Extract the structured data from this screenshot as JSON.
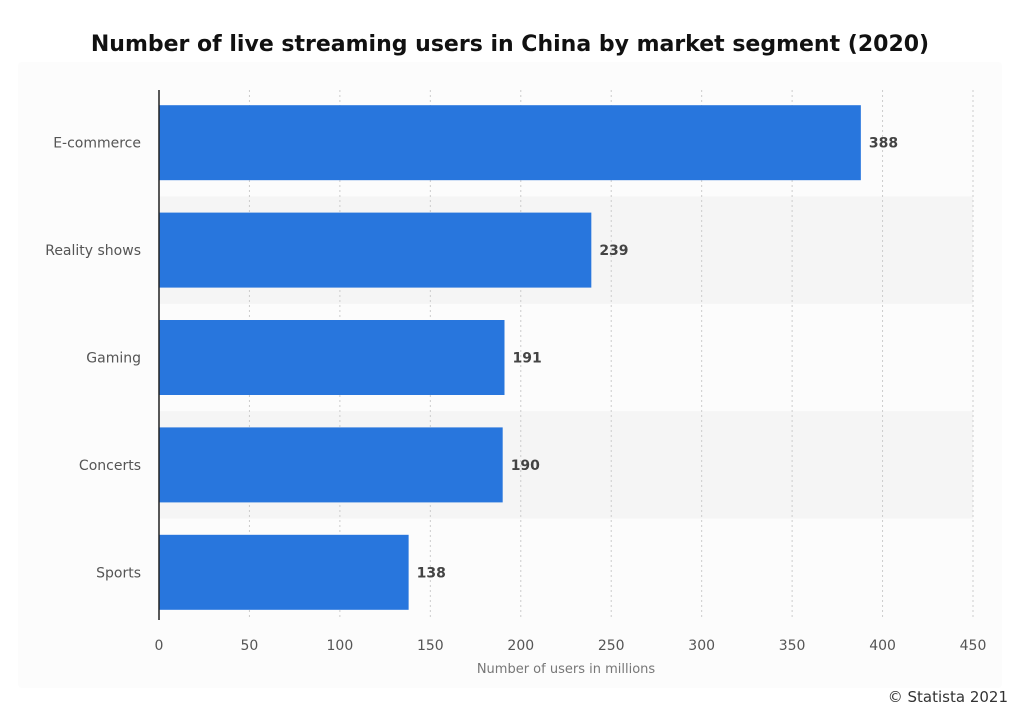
{
  "header": {
    "title": "Number of live streaming users in China by market segment (2020)"
  },
  "footer": {
    "credit": "© Statista 2021"
  },
  "colors": {
    "bar": "#2876dd",
    "band": "#f5f5f5",
    "grid": "#cccccc",
    "axis": "#222222"
  },
  "chart_data": {
    "type": "bar",
    "orientation": "horizontal",
    "title": "Number of live streaming users in China by market segment (2020)",
    "xlabel": "Number of users in millions",
    "ylabel": "",
    "categories": [
      "E-commerce",
      "Reality shows",
      "Gaming",
      "Concerts",
      "Sports"
    ],
    "values": [
      388,
      239,
      191,
      190,
      138
    ],
    "value_labels": [
      "388",
      "239",
      "191",
      "190",
      "138"
    ],
    "xlim": [
      0,
      450
    ],
    "xticks": [
      0,
      50,
      100,
      150,
      200,
      250,
      300,
      350,
      400,
      450
    ],
    "xtick_labels": [
      "0",
      "50",
      "100",
      "150",
      "200",
      "250",
      "300",
      "350",
      "400",
      "450"
    ],
    "grid": "vertical dotted",
    "legend": "none"
  }
}
